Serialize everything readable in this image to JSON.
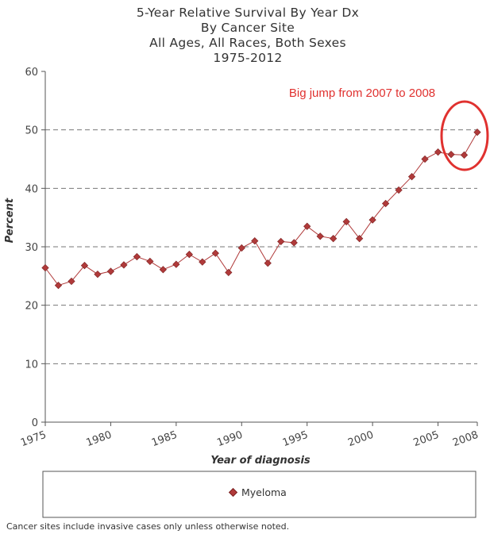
{
  "chart_data": {
    "type": "line",
    "title": [
      "5-Year Relative Survival By Year Dx",
      "By Cancer Site",
      "All Ages, All Races, Both Sexes",
      "1975-2012"
    ],
    "xlabel": "Year of diagnosis",
    "ylabel": "Percent",
    "xlim": [
      1975,
      2008
    ],
    "ylim": [
      0,
      60
    ],
    "xticks": [
      1975,
      1980,
      1985,
      1990,
      1995,
      2000,
      2005,
      2008
    ],
    "yticks": [
      0,
      10,
      20,
      30,
      40,
      50,
      60
    ],
    "grid": "horizontal dashed",
    "legend_position": "bottom",
    "series": [
      {
        "name": "Myeloma",
        "color": "#b03a3a",
        "x": [
          1975,
          1976,
          1977,
          1978,
          1979,
          1980,
          1981,
          1982,
          1983,
          1984,
          1985,
          1986,
          1987,
          1988,
          1989,
          1990,
          1991,
          1992,
          1993,
          1994,
          1995,
          1996,
          1997,
          1998,
          1999,
          2000,
          2001,
          2002,
          2003,
          2004,
          2005,
          2006,
          2007,
          2008
        ],
        "y": [
          26.4,
          23.4,
          24.1,
          26.8,
          25.3,
          25.8,
          26.9,
          28.3,
          27.5,
          26.1,
          27.0,
          28.7,
          27.4,
          28.9,
          25.6,
          29.8,
          31.0,
          27.2,
          30.9,
          30.7,
          33.5,
          31.8,
          31.4,
          34.3,
          31.4,
          34.6,
          37.4,
          39.7,
          42.0,
          45.0,
          46.2,
          45.8,
          45.7,
          49.6
        ]
      }
    ],
    "annotations": [
      {
        "text": "Big jump from 2007 to 2008",
        "color": "#e0312f",
        "target_x": [
          2007,
          2008
        ]
      }
    ]
  },
  "footnote": "Cancer sites include invasive cases only unless otherwise noted."
}
